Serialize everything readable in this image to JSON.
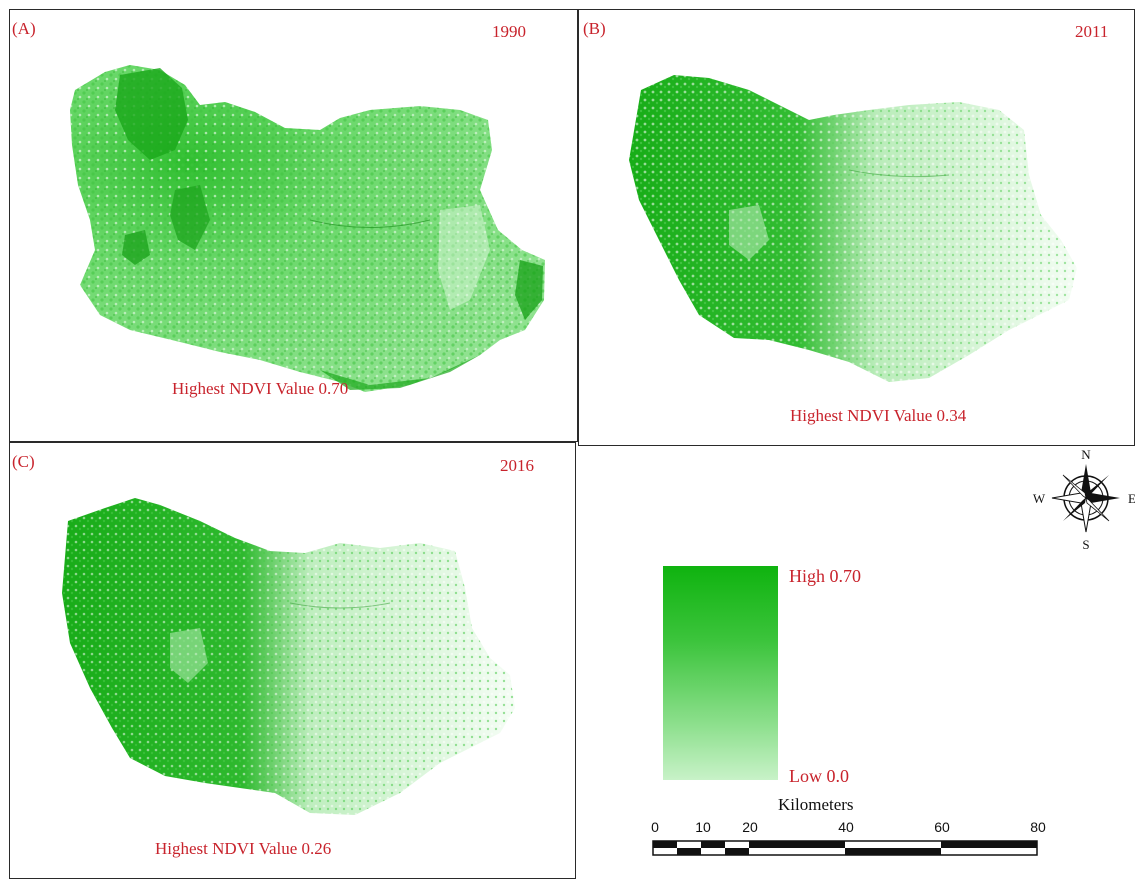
{
  "panels": [
    {
      "id": "A",
      "label": "(A)",
      "year": "1990",
      "caption": "Highest NDVI Value 0.70"
    },
    {
      "id": "B",
      "label": "(B)",
      "year": "2011",
      "caption": "Highest NDVI Value 0.34"
    },
    {
      "id": "C",
      "label": "(C)",
      "year": "2016",
      "caption": "Highest NDVI Value 0.26"
    }
  ],
  "legend": {
    "high_label": "High 0.70",
    "low_label": "Low 0.0",
    "high_value": 0.7,
    "low_value": 0.0,
    "high_color": "#0fb30f",
    "low_color": "#c8f2c8"
  },
  "compass": {
    "n": "N",
    "s": "S",
    "e": "E",
    "w": "W"
  },
  "scale_bar": {
    "title": "Kilometers",
    "ticks": [
      "0",
      "10",
      "20",
      "40",
      "60",
      "80"
    ]
  },
  "colors": {
    "text_red": "#c8232c",
    "veg_dark": "#0fa80f",
    "veg_light": "#d9f5d9"
  }
}
